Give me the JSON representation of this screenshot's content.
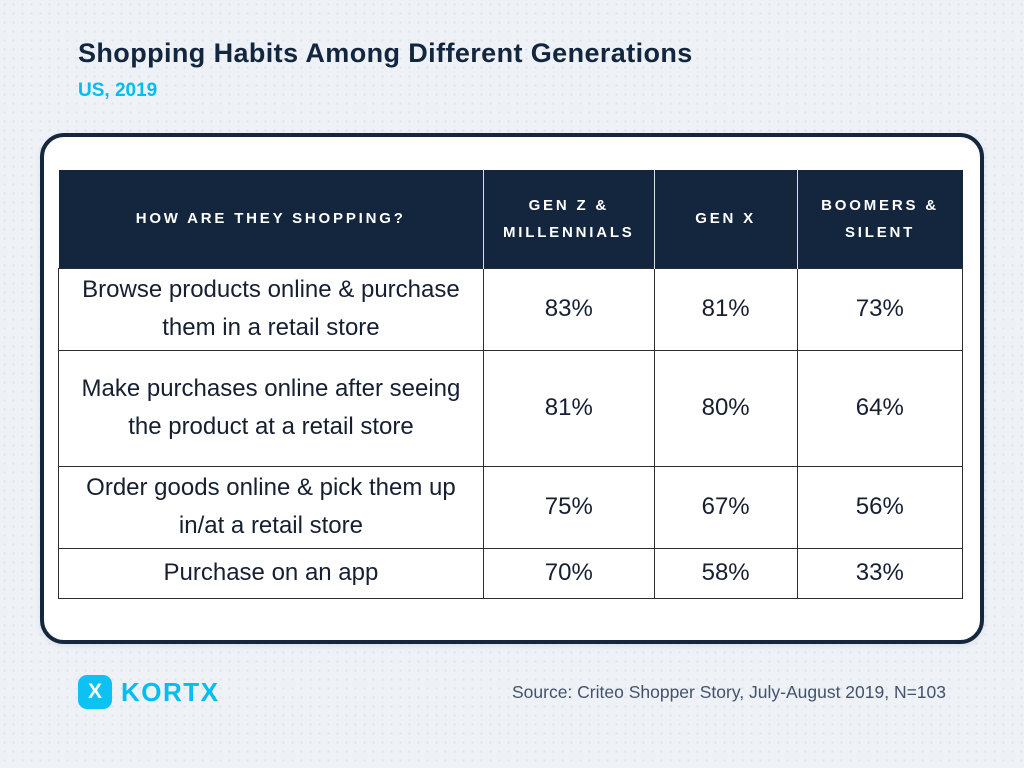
{
  "header": {
    "title": "Shopping Habits Among Different Generations",
    "subtitle": "US, 2019"
  },
  "table": {
    "columns": [
      "HOW ARE THEY SHOPPING?",
      "GEN Z & MILLENNIALS",
      "GEN X",
      "BOOMERS & SILENT"
    ],
    "rows": [
      {
        "label": "Browse products online & purchase them in a retail store",
        "values": [
          "83%",
          "81%",
          "73%"
        ]
      },
      {
        "label": "Make purchases online after seeing the product at a retail store",
        "values": [
          "81%",
          "80%",
          "64%"
        ]
      },
      {
        "label": "Order goods online & pick them up in/at a retail store",
        "values": [
          "75%",
          "67%",
          "56%"
        ]
      },
      {
        "label": "Purchase on an app",
        "values": [
          "70%",
          "58%",
          "33%"
        ]
      }
    ]
  },
  "chart_data": {
    "type": "table",
    "title": "Shopping Habits Among Different Generations",
    "subtitle": "US, 2019",
    "row_header": "How are they shopping?",
    "categories": [
      "Gen Z & Millennials",
      "Gen X",
      "Boomers & Silent"
    ],
    "series": [
      {
        "name": "Browse products online & purchase them in a retail store",
        "values_pct": [
          83,
          81,
          73
        ]
      },
      {
        "name": "Make purchases online after seeing the product at a retail store",
        "values_pct": [
          81,
          80,
          64
        ]
      },
      {
        "name": "Order goods online & pick them up in/at a retail store",
        "values_pct": [
          75,
          67,
          56
        ]
      },
      {
        "name": "Purchase on an app",
        "values_pct": [
          70,
          58,
          33
        ]
      }
    ],
    "source": "Criteo Shopper Story, July-August 2019, N=103"
  },
  "footer": {
    "brand_icon_letter": "X",
    "brand": "KORTX",
    "source": "Source: Criteo Shopper Story, July-August 2019, N=103"
  },
  "colors": {
    "background": "#eef1f6",
    "navy": "#13263e",
    "accent_cyan": "#00bdf2",
    "card_background": "#ffffff",
    "body_text": "#161f31",
    "source_text": "#42536b"
  }
}
